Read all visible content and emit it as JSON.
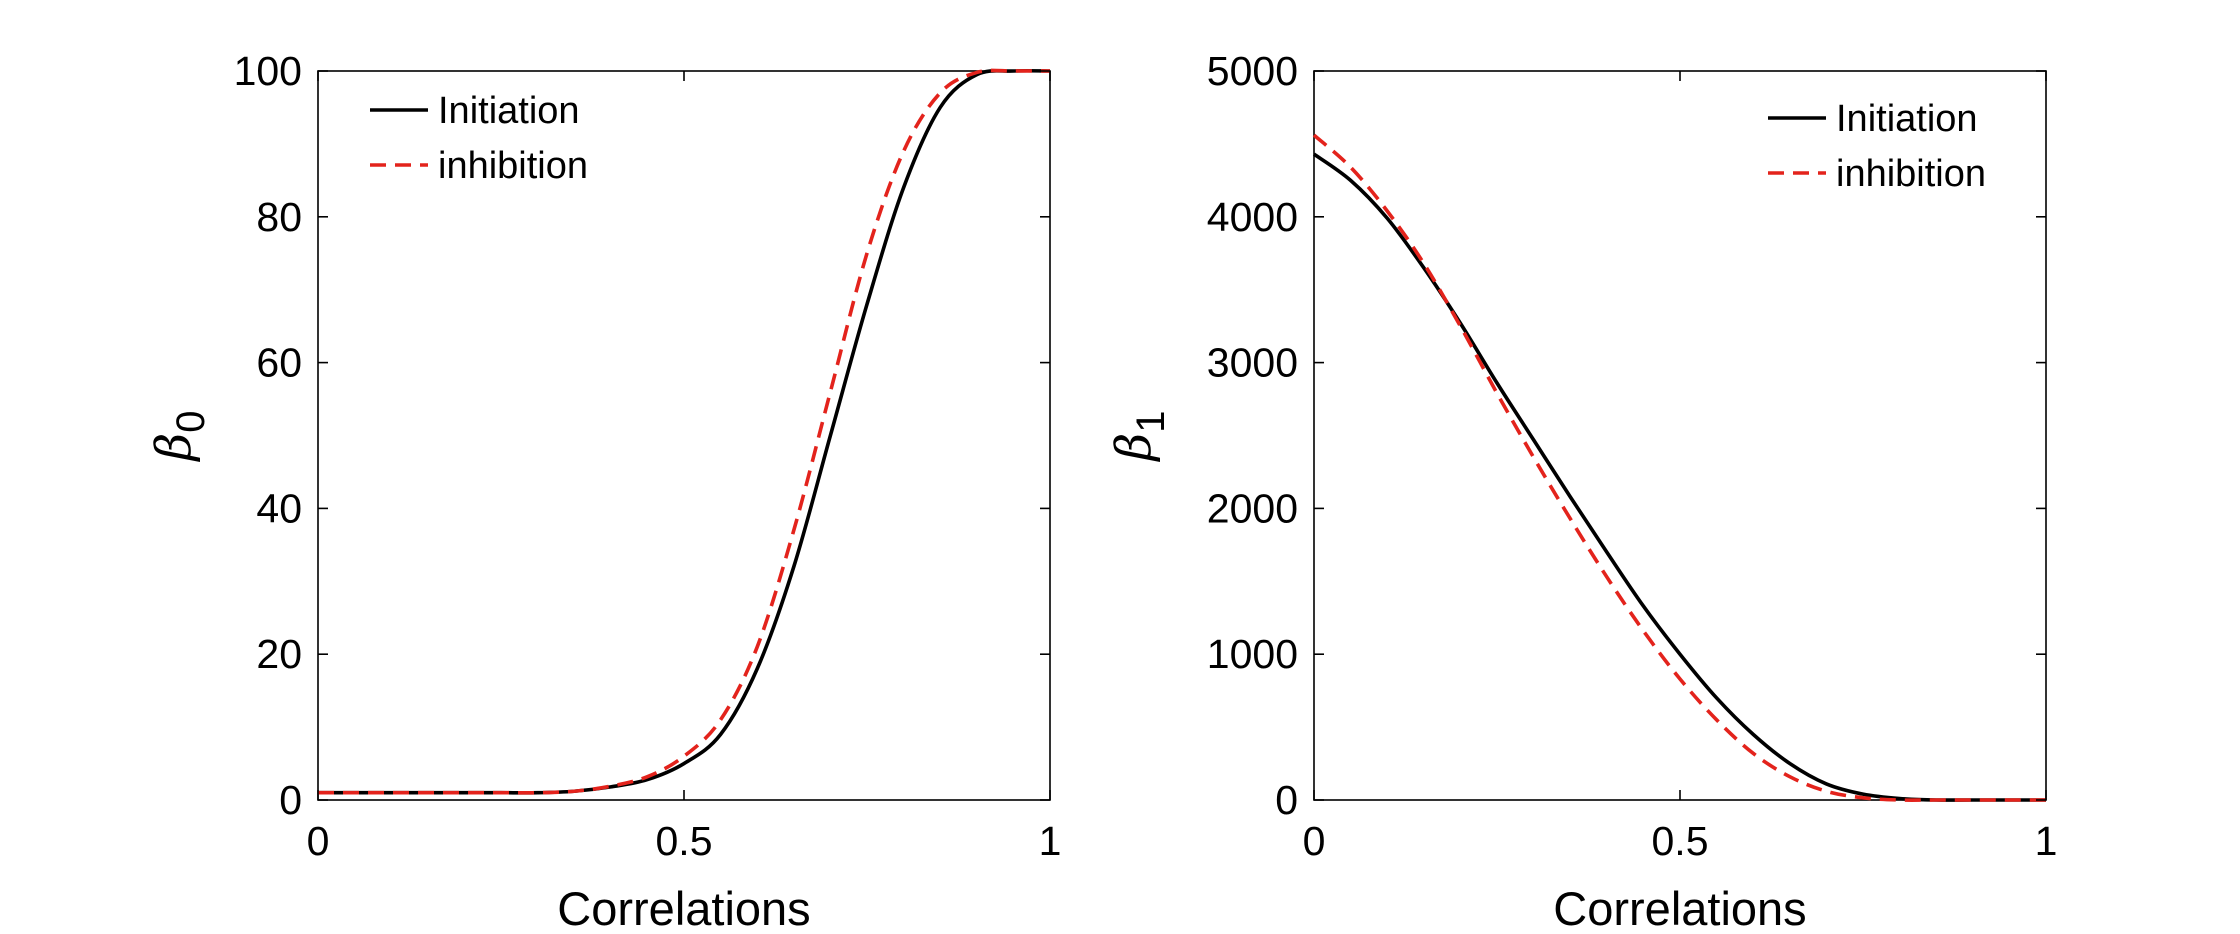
{
  "chart_data": [
    {
      "type": "line",
      "xlabel": "Correlations",
      "ylabel": {
        "symbol": "β",
        "subscript": "0"
      },
      "xlim": [
        0,
        1
      ],
      "ylim": [
        0,
        100
      ],
      "xticks": [
        "0",
        "0.5",
        "1"
      ],
      "yticks": [
        "0",
        "20",
        "40",
        "60",
        "80",
        "100"
      ],
      "grid": false,
      "legend_position": "top-left",
      "x": [
        0,
        0.05,
        0.1,
        0.15,
        0.2,
        0.25,
        0.3,
        0.35,
        0.4,
        0.45,
        0.5,
        0.55,
        0.6,
        0.65,
        0.7,
        0.75,
        0.8,
        0.85,
        0.9,
        0.95,
        1.0
      ],
      "series": [
        {
          "name": "Initiation",
          "color": "#000000",
          "style": "solid",
          "values": [
            1,
            1,
            1,
            1,
            1,
            1,
            1,
            1.2,
            1.8,
            2.8,
            5,
            9,
            18,
            32,
            50,
            68,
            84,
            95,
            99.5,
            100,
            100
          ]
        },
        {
          "name": "inhibition",
          "color": "#e3231c",
          "style": "dashed",
          "values": [
            1,
            1,
            1,
            1,
            1,
            1,
            1,
            1.2,
            1.9,
            3.2,
            6,
            11,
            21,
            37,
            56,
            75,
            89,
            97,
            99.8,
            100,
            100
          ]
        }
      ]
    },
    {
      "type": "line",
      "xlabel": "Correlations",
      "ylabel": {
        "symbol": "β",
        "subscript": "1"
      },
      "xlim": [
        0,
        1
      ],
      "ylim": [
        0,
        5000
      ],
      "xticks": [
        "0",
        "0.5",
        "1"
      ],
      "yticks": [
        "0",
        "1000",
        "2000",
        "3000",
        "4000",
        "5000"
      ],
      "grid": false,
      "legend_position": "top-right",
      "x": [
        0,
        0.05,
        0.1,
        0.15,
        0.2,
        0.25,
        0.3,
        0.35,
        0.4,
        0.45,
        0.5,
        0.55,
        0.6,
        0.65,
        0.7,
        0.75,
        0.8,
        0.85,
        0.9,
        0.95,
        1.0
      ],
      "series": [
        {
          "name": "Initiation",
          "color": "#000000",
          "style": "solid",
          "values": [
            4430,
            4250,
            3990,
            3650,
            3270,
            2860,
            2470,
            2080,
            1700,
            1330,
            1000,
            700,
            450,
            250,
            110,
            40,
            10,
            0,
            0,
            0,
            0
          ]
        },
        {
          "name": "inhibition",
          "color": "#e3231c",
          "style": "dashed",
          "values": [
            4560,
            4340,
            4040,
            3680,
            3250,
            2790,
            2350,
            1930,
            1530,
            1160,
            830,
            550,
            320,
            160,
            60,
            15,
            0,
            0,
            0,
            0,
            0
          ]
        }
      ]
    }
  ]
}
